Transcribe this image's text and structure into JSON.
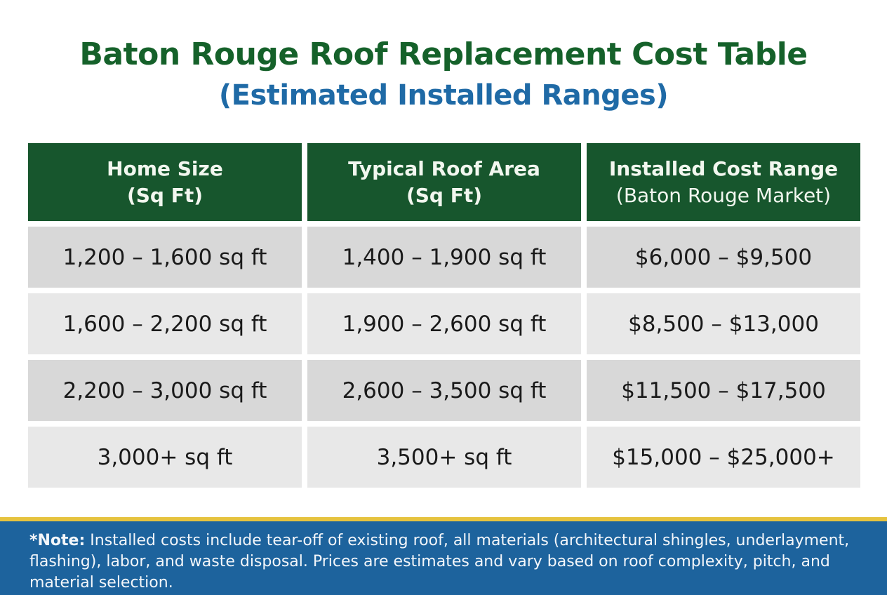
{
  "title": "Baton Rouge Roof Replacement Cost Table",
  "subtitle": "(Estimated Installed Ranges)",
  "table": {
    "headers": [
      {
        "line1": "Home Size",
        "line2": "(Sq Ft)"
      },
      {
        "line1": "Typical Roof Area",
        "line2": "(Sq Ft)"
      },
      {
        "line1": "Installed Cost Range",
        "line2": "(Baton Rouge Market)"
      }
    ],
    "rows": [
      [
        "1,200 – 1,600 sq ft",
        "1,400 – 1,900 sq ft",
        "$6,000 – $9,500"
      ],
      [
        "1,600 – 2,200 sq ft",
        "1,900 – 2,600 sq ft",
        "$8,500 – $13,000"
      ],
      [
        "2,200 – 3,000 sq ft",
        "2,600 – 3,500 sq ft",
        "$11,500 – $17,500"
      ],
      [
        "3,000+ sq ft",
        "3,500+ sq ft",
        "$15,000 – $25,000+"
      ]
    ]
  },
  "note": {
    "label": "*Note:",
    "text": " Installed costs include tear-off of existing roof, all materials (architectural shingles, underlayment, flashing), labor, and waste disposal. Prices are estimates and vary based on roof complexity, pitch, and material selection."
  },
  "colors": {
    "title_green": "#15612a",
    "subtitle_blue": "#1f6aa6",
    "header_green": "#17562d",
    "note_blue": "#1d639d",
    "accent_gold": "#e6c33f"
  }
}
